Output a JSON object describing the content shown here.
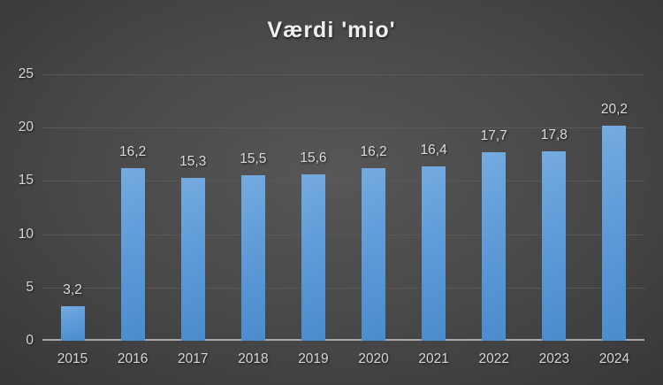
{
  "chart_data": {
    "type": "bar",
    "title": "Værdi 'mio'",
    "categories": [
      "2015",
      "2016",
      "2017",
      "2018",
      "2019",
      "2020",
      "2021",
      "2022",
      "2023",
      "2024"
    ],
    "values": [
      3.2,
      16.2,
      15.3,
      15.5,
      15.6,
      16.2,
      16.4,
      17.7,
      17.8,
      20.2
    ],
    "value_labels": [
      "3,2",
      "16,2",
      "15,3",
      "15,5",
      "15,6",
      "16,2",
      "16,4",
      "17,7",
      "17,8",
      "20,2"
    ],
    "xlabel": "",
    "ylabel": "",
    "ylim": [
      0,
      25
    ],
    "yticks": [
      0,
      5,
      10,
      15,
      20,
      25
    ],
    "ytick_labels": [
      "0",
      "5",
      "10",
      "15",
      "20",
      "25"
    ],
    "grid": true,
    "legend": "none",
    "colors": {
      "bar_top": "#74abe0",
      "bar_bottom": "#4a8ccd",
      "gridline": "#595959",
      "axis_line": "#a8a8a8",
      "text": "#d6d6d6",
      "title_text": "#efefef",
      "background_center": "#575757",
      "background_edge": "#232323"
    }
  }
}
